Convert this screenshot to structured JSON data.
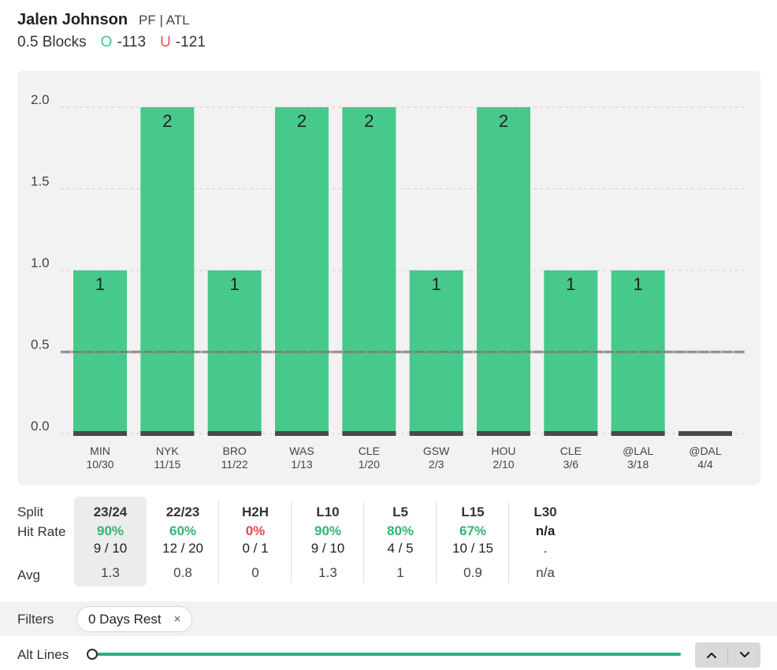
{
  "player": {
    "name": "Jalen Johnson",
    "meta": "PF | ATL"
  },
  "prop": {
    "line_label": "0.5 Blocks",
    "over_symbol": "O",
    "over_odds": "-113",
    "under_symbol": "U",
    "under_odds": "-121"
  },
  "colors": {
    "bar": "#46c98b",
    "over": "#40c58a",
    "under": "#e5575b",
    "pct_green": "#2fb574",
    "pct_red": "#e5474b",
    "baseline": "#4a4a4a"
  },
  "chart_data": {
    "type": "bar",
    "title": "",
    "xlabel": "",
    "ylabel": "",
    "categories": [
      {
        "opp": "MIN",
        "date": "10/30"
      },
      {
        "opp": "NYK",
        "date": "11/15"
      },
      {
        "opp": "BRO",
        "date": "11/22"
      },
      {
        "opp": "WAS",
        "date": "1/13"
      },
      {
        "opp": "CLE",
        "date": "1/20"
      },
      {
        "opp": "GSW",
        "date": "2/3"
      },
      {
        "opp": "HOU",
        "date": "2/10"
      },
      {
        "opp": "CLE",
        "date": "3/6"
      },
      {
        "opp": "@LAL",
        "date": "3/18"
      },
      {
        "opp": "@DAL",
        "date": "4/4"
      }
    ],
    "values": [
      1,
      2,
      1,
      2,
      2,
      1,
      2,
      1,
      1,
      0
    ],
    "data_labels": [
      "1",
      "2",
      "1",
      "2",
      "2",
      "1",
      "2",
      "1",
      "1",
      ""
    ],
    "prop_line": 0.5,
    "ylim": [
      0,
      2
    ],
    "yticks": [
      {
        "value": 0,
        "label": "0.0"
      },
      {
        "value": 0.5,
        "label": "0.5"
      },
      {
        "value": 1,
        "label": "1.0"
      },
      {
        "value": 1.5,
        "label": "1.5"
      },
      {
        "value": 2,
        "label": "2.0"
      }
    ],
    "grid": true
  },
  "splits": {
    "row_labels": {
      "split": "Split",
      "hit_rate": "Hit Rate",
      "avg": "Avg"
    },
    "columns": [
      {
        "label": "23/24",
        "pct": "90%",
        "frac": "9 / 10",
        "avg": "1.3",
        "tone": "green",
        "active": true
      },
      {
        "label": "22/23",
        "pct": "60%",
        "frac": "12 / 20",
        "avg": "0.8",
        "tone": "green",
        "active": false
      },
      {
        "label": "H2H",
        "pct": "0%",
        "frac": "0 / 1",
        "avg": "0",
        "tone": "red",
        "active": false
      },
      {
        "label": "L10",
        "pct": "90%",
        "frac": "9 / 10",
        "avg": "1.3",
        "tone": "green",
        "active": false
      },
      {
        "label": "L5",
        "pct": "80%",
        "frac": "4 / 5",
        "avg": "1",
        "tone": "green",
        "active": false
      },
      {
        "label": "L15",
        "pct": "67%",
        "frac": "10 / 15",
        "avg": "0.9",
        "tone": "green",
        "active": false
      },
      {
        "label": "L30",
        "pct": "n/a",
        "frac": ".",
        "avg": "n/a",
        "tone": "dark",
        "active": false
      }
    ]
  },
  "filters": {
    "label": "Filters",
    "chips": [
      {
        "label": "0 Days Rest",
        "remove": "×"
      }
    ]
  },
  "alt_lines": {
    "label": "Alt Lines",
    "up": "up",
    "down": "down"
  }
}
